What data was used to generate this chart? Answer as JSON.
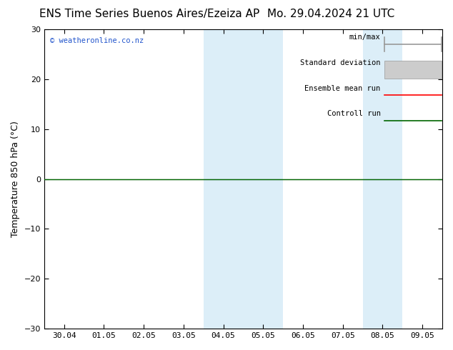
{
  "title_left": "ENS Time Series Buenos Aires/Ezeiza AP",
  "title_right": "Mo. 29.04.2024 21 UTC",
  "ylabel": "Temperature 850 hPa (°C)",
  "ylim": [
    -30,
    30
  ],
  "yticks": [
    -30,
    -20,
    -10,
    0,
    10,
    20,
    30
  ],
  "x_tick_labels": [
    "30.04",
    "01.05",
    "02.05",
    "03.05",
    "04.05",
    "05.05",
    "06.05",
    "07.05",
    "08.05",
    "09.05"
  ],
  "x_tick_positions": [
    0,
    1,
    2,
    3,
    4,
    5,
    6,
    7,
    8,
    9
  ],
  "xlim": [
    -0.5,
    9.5
  ],
  "shaded_bands": [
    {
      "x_start": 3.5,
      "x_end": 5.5,
      "color": "#dceef8"
    },
    {
      "x_start": 7.5,
      "x_end": 8.5,
      "color": "#dceef8"
    }
  ],
  "hline_y": 0,
  "hline_color": "#000000",
  "control_run_color": "#006600",
  "watermark": "© weatheronline.co.nz",
  "watermark_color": "#2255cc",
  "background_color": "#ffffff",
  "plot_bg_color": "#ffffff",
  "legend_items": [
    {
      "label": "min/max",
      "type": "minmax",
      "color": "#999999",
      "lw": 1.2
    },
    {
      "label": "Standard deviation",
      "type": "stdev",
      "color": "#cccccc",
      "lw": 1.2
    },
    {
      "label": "Ensemble mean run",
      "type": "line",
      "color": "#ff0000",
      "lw": 1.2
    },
    {
      "label": "Controll run",
      "type": "line",
      "color": "#006600",
      "lw": 1.2
    }
  ],
  "title_fontsize": 11,
  "label_fontsize": 9,
  "tick_fontsize": 8,
  "legend_fontsize": 7.5
}
